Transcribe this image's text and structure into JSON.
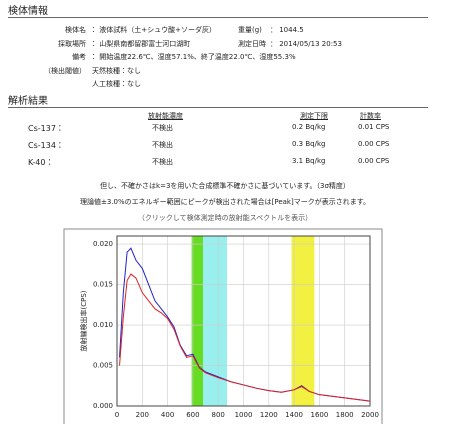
{
  "sample_info": {
    "title": "検体情報",
    "fields": [
      {
        "label": "検体名",
        "value": "： 液体試料（土+シュウ酸+ソーダ灰）"
      },
      {
        "label": "採取場所",
        "value": "： 山梨県南都留郡富士河口湖町"
      },
      {
        "label": "備考",
        "value": "： 開始温度22.6℃、湿度57.1%、終了温度22.0℃、湿度55.3%"
      },
      {
        "label": "（検出閾値）",
        "value": "天然核種：なし"
      },
      {
        "label": "",
        "value": "人工核種：なし"
      }
    ],
    "side_fields": [
      {
        "label": "重量(g)",
        "value": "： 1044.5"
      },
      {
        "label": "測定日時",
        "value": "： 2014/05/13 20:53"
      }
    ]
  },
  "analysis": {
    "title": "解析結果",
    "headers": [
      "放射能濃度",
      "測定下限",
      "計数率"
    ],
    "rows": [
      [
        "Cs-137：",
        "不検出",
        "0.2 Bq/kg",
        "0.01 CPS"
      ],
      [
        "Cs-134：",
        "不検出",
        "0.3 Bq/kg",
        "0.00 CPS"
      ],
      [
        "K-40：",
        "不検出",
        "3.1 Bq/kg",
        "0.00 CPS"
      ]
    ],
    "notes": [
      "但し、不確かさはk=3を用いた合成標準不確かさに基づいています。（3σ精度）",
      "理論値±3.0%のエネルギー範囲にピークが検出された場合は[Peak]マークが表示されます。"
    ],
    "link": "（クリックして検体測定時の放射能スペクトルを表示）"
  },
  "chart_data": {
    "type": "line",
    "y_label": "放射線検出率(CPS)",
    "x": [
      20,
      50,
      80,
      110,
      150,
      200,
      250,
      300,
      350,
      400,
      450,
      500,
      550,
      600,
      650,
      700,
      800,
      900,
      1000,
      1100,
      1200,
      1300,
      1400,
      1460,
      1520,
      1600,
      1700,
      1800,
      1900,
      2000
    ],
    "series": [
      {
        "name": "blue",
        "color": "#2222cc",
        "values": [
          0.006,
          0.014,
          0.019,
          0.0195,
          0.018,
          0.017,
          0.015,
          0.013,
          0.012,
          0.011,
          0.0098,
          0.0075,
          0.0062,
          0.0064,
          0.0048,
          0.0042,
          0.0036,
          0.003,
          0.0026,
          0.0022,
          0.0019,
          0.0017,
          0.002,
          0.0025,
          0.0018,
          0.0014,
          0.0012,
          0.001,
          0.0008,
          0.0006
        ]
      },
      {
        "name": "red",
        "color": "#dd2222",
        "values": [
          0.005,
          0.011,
          0.0155,
          0.0163,
          0.0158,
          0.014,
          0.013,
          0.012,
          0.0115,
          0.0108,
          0.0095,
          0.0074,
          0.006,
          0.0062,
          0.0047,
          0.0041,
          0.0035,
          0.003,
          0.0026,
          0.0022,
          0.0019,
          0.0017,
          0.002,
          0.0024,
          0.0018,
          0.0014,
          0.0012,
          0.001,
          0.0008,
          0.0006
        ]
      }
    ],
    "bands": [
      {
        "from": 590,
        "to": 680,
        "color": "#66dd22"
      },
      {
        "from": 680,
        "to": 870,
        "color": "#99eeee"
      },
      {
        "from": 1380,
        "to": 1560,
        "color": "#f2f040"
      }
    ],
    "xlim": [
      0,
      2000
    ],
    "xticks": [
      0,
      200,
      400,
      600,
      800,
      1000,
      1200,
      1400,
      1600,
      1800,
      2000
    ],
    "ylim": [
      0,
      0.021
    ],
    "yticks": [
      {
        "value": 0,
        "label": "0.000"
      },
      {
        "value": 0.005,
        "label": "0.005"
      },
      {
        "value": 0.01,
        "label": "0.010"
      },
      {
        "value": 0.015,
        "label": "0.015"
      },
      {
        "value": 0.02,
        "label": "0.020"
      }
    ],
    "grid": true
  }
}
